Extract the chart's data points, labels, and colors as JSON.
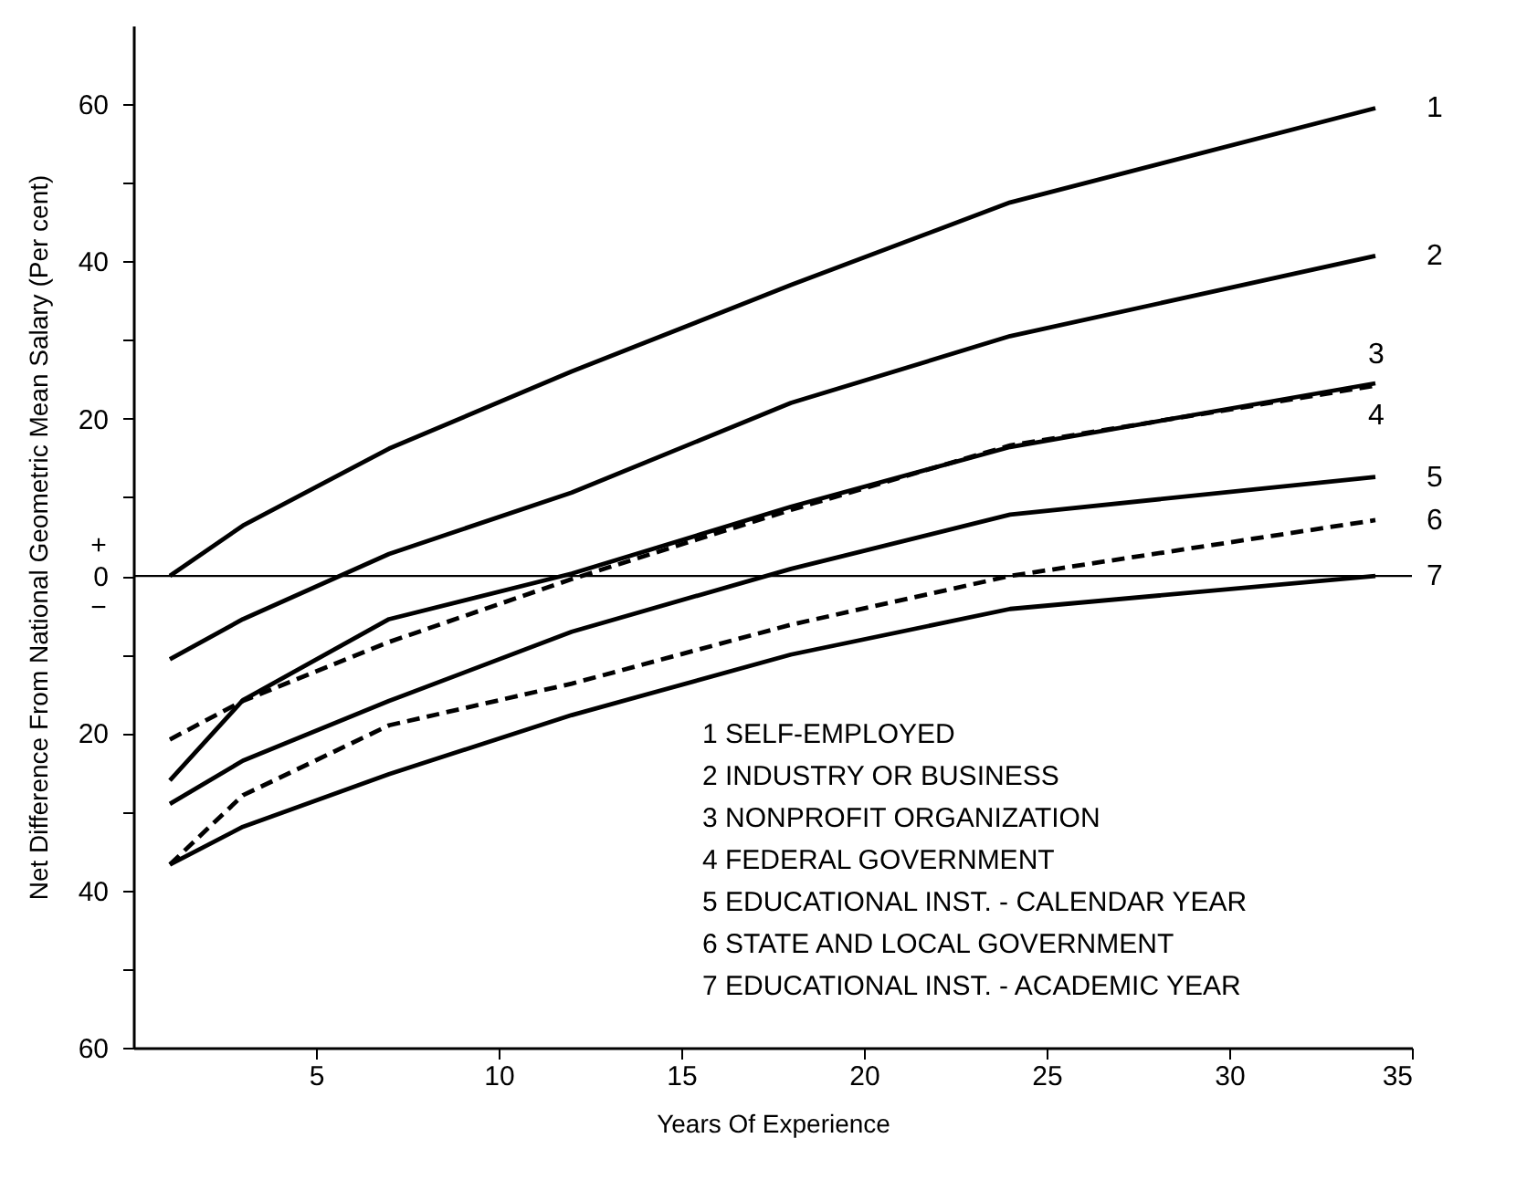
{
  "chart_data": {
    "type": "line",
    "xlabel": "Years Of Experience",
    "ylabel": "Net Difference From National Geometric Mean Salary (Per cent)",
    "xlim": [
      0,
      35
    ],
    "xticks": [
      5,
      10,
      15,
      20,
      25,
      30,
      35
    ],
    "ylim": [
      -60,
      70
    ],
    "yticks": [
      {
        "value": -60,
        "label": "60"
      },
      {
        "value": -50,
        "label": null
      },
      {
        "value": -40,
        "label": "40"
      },
      {
        "value": -30,
        "label": null
      },
      {
        "value": -20,
        "label": "20"
      },
      {
        "value": -10,
        "label": null
      },
      0,
      {
        "value": 10,
        "label": null
      },
      20,
      {
        "value": 30,
        "label": null
      },
      40,
      {
        "value": 50,
        "label": null
      },
      60
    ],
    "x": [
      1,
      3,
      7,
      12,
      18,
      24,
      34
    ],
    "series": [
      {
        "name": "1",
        "color": "#000000",
        "line_style": "solid",
        "values": [
          0,
          6.4,
          16.2,
          26,
          37,
          47.5,
          59.5
        ]
      },
      {
        "name": "2",
        "color": "#000000",
        "line_style": "solid",
        "values": [
          -10.6,
          -5.5,
          2.8,
          10.6,
          22,
          30.5,
          40.7
        ]
      },
      {
        "name": "3",
        "color": "#000000",
        "line_style": "solid",
        "values": [
          -26,
          -15.8,
          -5.5,
          0.3,
          8.8,
          16.4,
          24.5
        ]
      },
      {
        "name": "4",
        "color": "#000000",
        "line_style": "dashed",
        "values": [
          -20.8,
          -15.9,
          -8.4,
          -0.4,
          8.4,
          16.6,
          24.2
        ]
      },
      {
        "name": "5",
        "color": "#000000",
        "line_style": "solid",
        "values": [
          -29,
          -23.5,
          -15.9,
          -7.1,
          0.9,
          7.8,
          12.6
        ]
      },
      {
        "name": "6",
        "color": "#000000",
        "line_style": "dashed",
        "values": [
          -36.7,
          -27.9,
          -19,
          -13.7,
          -6.2,
          0,
          7.1
        ]
      },
      {
        "name": "7",
        "color": "#000000",
        "line_style": "solid",
        "values": [
          -36.7,
          -31.9,
          -25.2,
          -17.7,
          -10,
          -4.2,
          0
        ]
      }
    ],
    "ref_lines": [
      {
        "axis": "y",
        "value": 0,
        "color": "#000000"
      }
    ],
    "annotations": [
      "+",
      "−",
      "1  SELF-EMPLOYED",
      "2  INDUSTRY OR BUSINESS",
      "3  NONPROFIT ORGANIZATION",
      "4  FEDERAL GOVERNMENT",
      "5  EDUCATIONAL INST. - CALENDAR YEAR",
      "6  STATE AND LOCAL GOVERNMENT",
      "7  EDUCATIONAL INST. - ACADEMIC YEAR"
    ]
  }
}
